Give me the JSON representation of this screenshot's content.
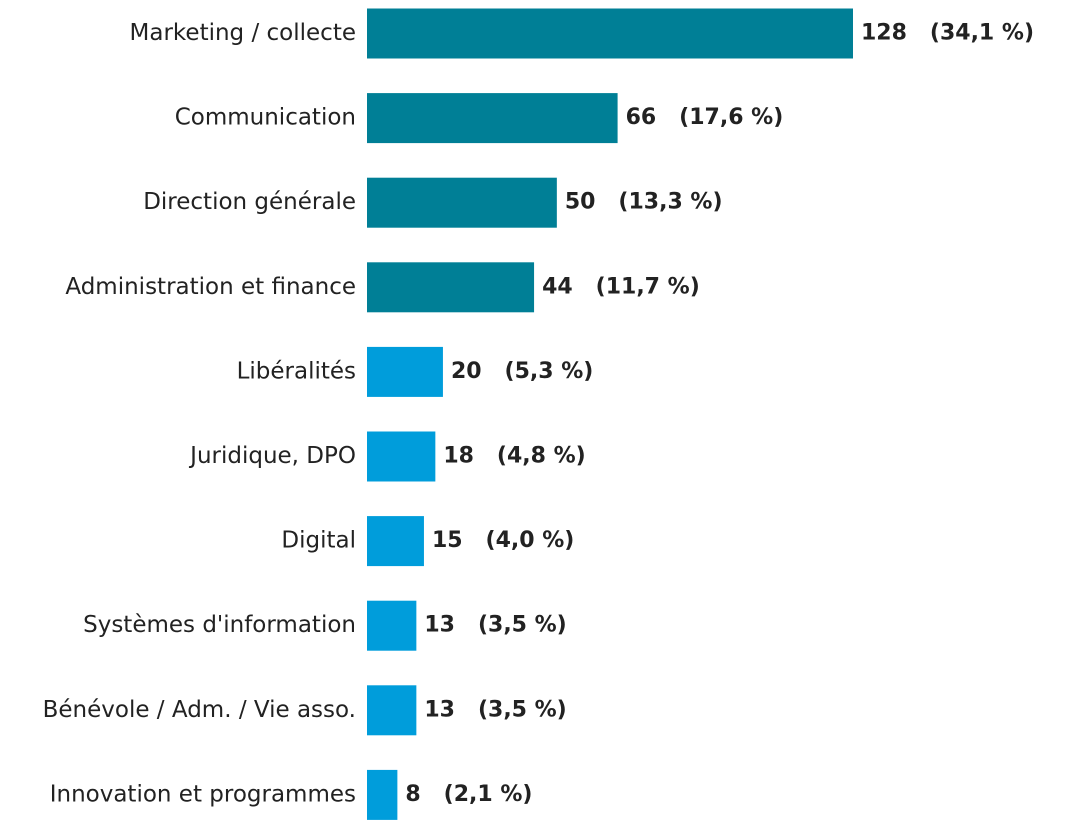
{
  "chart_data": {
    "type": "bar",
    "orientation": "horizontal",
    "categories": [
      "Marketing / collecte",
      "Communication",
      "Direction générale",
      "Administration et finance",
      "Libéralités",
      "Juridique, DPO",
      "Digital",
      "Systèmes d'information",
      "Bénévole / Adm. / Vie asso.",
      "Innovation et programmes"
    ],
    "values": [
      128,
      66,
      50,
      44,
      20,
      18,
      15,
      13,
      13,
      8
    ],
    "value_labels": [
      "128   (34,1 %)",
      "66   (17,6 %)",
      "50   (13,3 %)",
      "44   (11,7 %)",
      "20   (5,3 %)",
      "18   (4,8 %)",
      "15   (4,0 %)",
      "13   (3,5 %)",
      "13   (3,5 %)",
      "8   (2,1 %)"
    ],
    "colors": [
      "#007f96",
      "#007f96",
      "#007f96",
      "#007f96",
      "#009ddb",
      "#009ddb",
      "#009ddb",
      "#009ddb",
      "#009ddb",
      "#009ddb"
    ]
  }
}
